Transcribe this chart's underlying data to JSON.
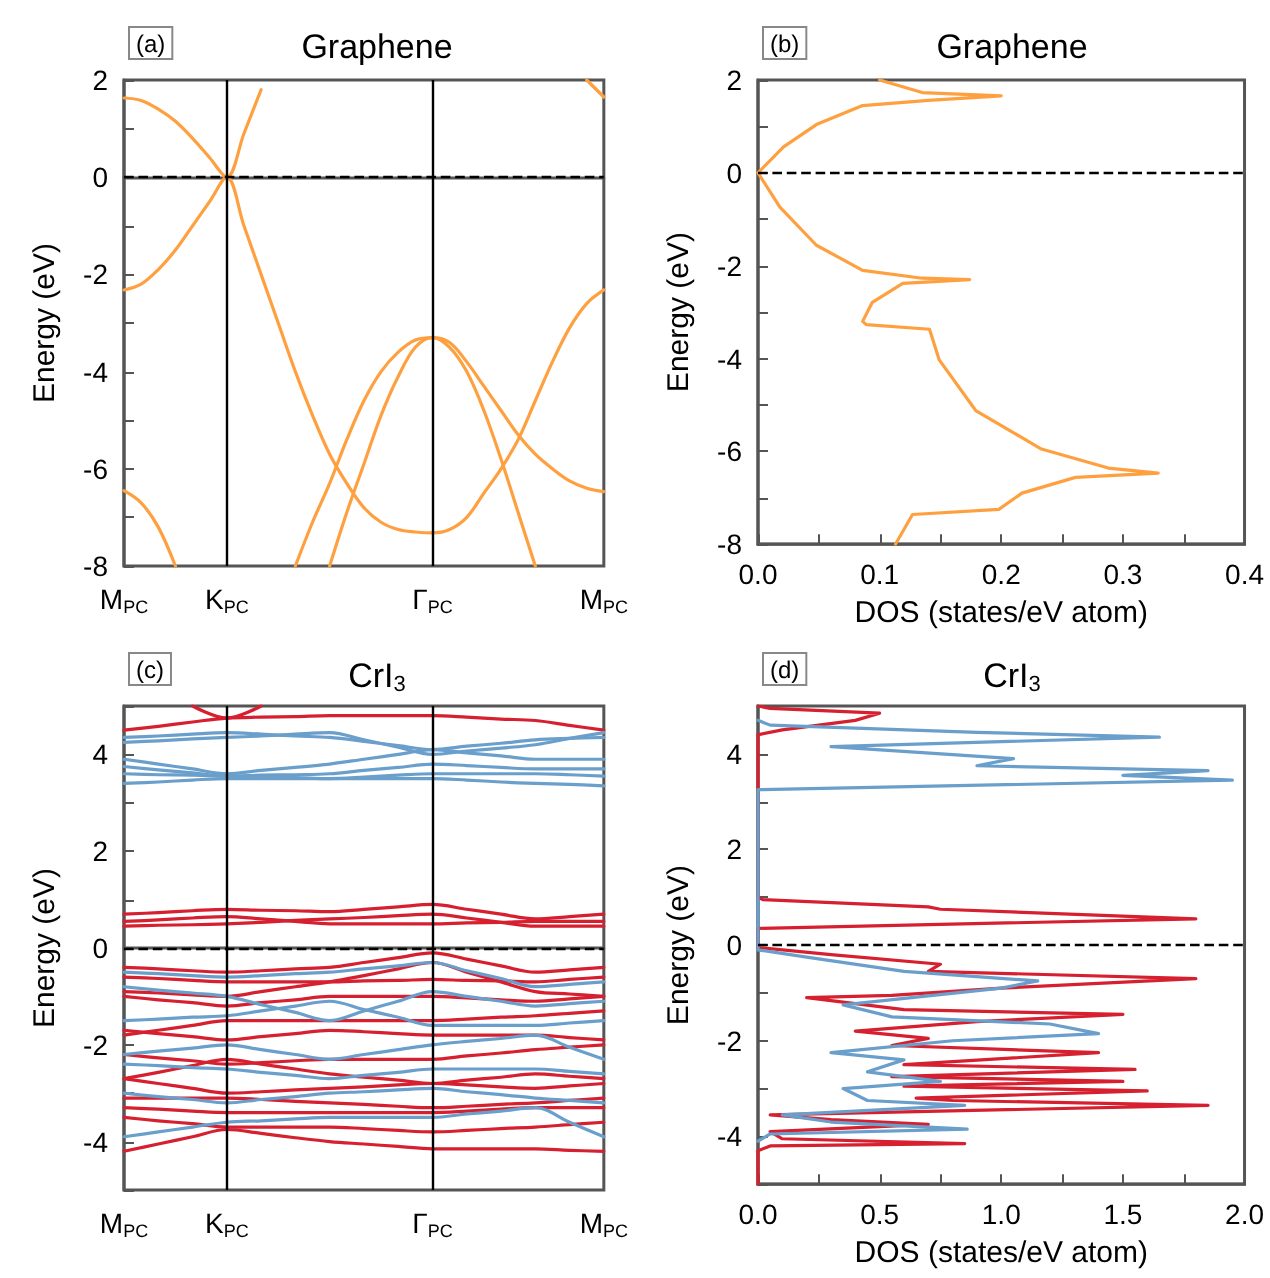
{
  "chart_data": [
    {
      "type": "line",
      "title": "Graphene",
      "ylabel": "Energy (eV)",
      "annotations": [
        "(a)"
      ],
      "color": "#ffa040",
      "marker": "none",
      "ylim": [
        -8,
        2
      ],
      "categories": [
        "M$_{PC}$",
        null,
        null,
        null,
        null,
        null,
        "K$_{PC}$",
        null,
        null,
        null,
        null,
        null,
        null,
        null,
        null,
        null,
        null,
        null,
        "Γ$_{PC}$",
        null,
        null,
        null,
        null,
        null,
        null,
        null,
        null,
        null,
        "M$_{PC}$"
      ],
      "yticks": [
        -8,
        {
          "value": -7,
          "label": null
        },
        -6,
        {
          "value": -5,
          "label": null
        },
        -4,
        {
          "value": -3,
          "label": null
        },
        -2,
        {
          "value": -1,
          "label": null
        },
        0,
        {
          "value": 1,
          "label": null
        },
        2
      ],
      "ref_lines": [
        {
          "axis": "x",
          "value": "K$_{PC}$",
          "color": "#000000",
          "line_style": "solid"
        },
        {
          "axis": "x",
          "value": "Γ$_{PC}$",
          "color": "#000000",
          "line_style": "solid"
        },
        {
          "axis": "y",
          "value": 0,
          "color": "#000000",
          "line_style": "dashed"
        }
      ],
      "series": [
        {
          "values": [
            1.63,
            1.58,
            1.4,
            1.15,
            0.8,
            0.4,
            0,
            0.9,
            1.8,
            null,
            null,
            null,
            null,
            null,
            null,
            null,
            null,
            null,
            null,
            null,
            null,
            null,
            null,
            null,
            null,
            null,
            null,
            null,
            null
          ]
        },
        {
          "values": [
            -2.32,
            -2.2,
            -1.9,
            -1.5,
            -1.0,
            -0.5,
            0,
            -1.0,
            -2.0,
            -3.0,
            -4.0,
            -4.9,
            -5.7,
            -6.3,
            -6.8,
            -7.1,
            -7.25,
            -7.3,
            -7.32,
            -7.25,
            -7.0,
            -6.5,
            -6.0,
            -5.4,
            -4.6,
            -3.8,
            -3.1,
            -2.6,
            -2.32
          ]
        },
        {
          "values": [
            null,
            null,
            null,
            null,
            null,
            null,
            null,
            null,
            null,
            null,
            -8,
            -7.1,
            -6.3,
            -5.4,
            -4.6,
            -4.0,
            -3.6,
            -3.35,
            -3.3,
            -3.5,
            -4.0,
            -4.8,
            -5.8,
            -6.9,
            -8,
            null,
            null,
            null,
            null
          ]
        },
        {
          "values": [
            null,
            null,
            null,
            null,
            null,
            null,
            null,
            null,
            null,
            null,
            null,
            null,
            -8,
            -6.9,
            -5.9,
            -4.9,
            -4.1,
            -3.5,
            -3.3,
            -3.4,
            -3.8,
            -4.3,
            -4.8,
            -5.3,
            -5.7,
            -6.0,
            -6.25,
            -6.4,
            -6.47
          ]
        },
        {
          "values": [
            -6.45,
            -6.7,
            -7.2,
            -8,
            null,
            null,
            null,
            null,
            null,
            null,
            null,
            null,
            null,
            null,
            null,
            null,
            null,
            null,
            null,
            null,
            null,
            null,
            null,
            null,
            null,
            null,
            null,
            null,
            null
          ]
        },
        {
          "values": [
            null,
            null,
            null,
            null,
            null,
            null,
            null,
            null,
            null,
            null,
            null,
            null,
            null,
            null,
            null,
            null,
            null,
            null,
            null,
            null,
            null,
            null,
            null,
            null,
            null,
            null,
            null,
            2,
            1.65
          ]
        }
      ]
    },
    {
      "type": "line",
      "title": "Graphene",
      "ylabel": "Energy (eV)",
      "xlabel": "DOS (states/eV atom)",
      "annotations": [
        "(b)"
      ],
      "color": "#ffa040",
      "marker": "none",
      "xlim": [
        0,
        0.4
      ],
      "ylim": [
        -8,
        2
      ],
      "xticks": [
        {
          "value": 0,
          "label": "0.0"
        },
        {
          "value": 0.05,
          "label": null
        },
        0.1,
        {
          "value": 0.15,
          "label": null
        },
        0.2,
        {
          "value": 0.25,
          "label": null
        },
        0.3,
        {
          "value": 0.35,
          "label": null
        },
        0.4
      ],
      "yticks": [
        -8,
        {
          "value": -7,
          "label": null
        },
        -6,
        {
          "value": -5,
          "label": null
        },
        -4,
        {
          "value": -3,
          "label": null
        },
        -2,
        {
          "value": -1,
          "label": null
        },
        0,
        {
          "value": 1,
          "label": null
        },
        2
      ],
      "ref_lines": [
        {
          "axis": "y",
          "value": 0,
          "color": "#000000",
          "line_style": "dashed"
        }
      ],
      "series": [
        {
          "x": [
            0.1,
            0.135,
            0.2,
            0.14,
            0.086,
            0.048,
            0.021,
            0,
            0.018,
            0.048,
            0.086,
            0.135,
            0.174,
            0.119,
            0.094,
            0.086,
            0.089,
            0.141,
            0.149,
            0.179,
            0.233,
            0.288,
            0.329,
            0.261,
            0.217,
            0.198,
            0.127,
            0.113
          ],
          "values": [
            2,
            1.73,
            1.66,
            1.56,
            1.45,
            1.04,
            0.56,
            0,
            -0.74,
            -1.56,
            -2.1,
            -2.27,
            -2.3,
            -2.38,
            -2.79,
            -3.2,
            -3.27,
            -3.37,
            -4.03,
            -5.12,
            -5.95,
            -6.36,
            -6.47,
            -6.56,
            -6.9,
            -7.25,
            -7.36,
            -8
          ]
        }
      ]
    },
    {
      "type": "line",
      "title": "CrI$_{3}$",
      "ylabel": "Energy (eV)",
      "annotations": [
        "(c)"
      ],
      "marker": "none",
      "ylim": [
        -5,
        5
      ],
      "categories": [
        "M$_{PC}$",
        null,
        null,
        "K$_{PC}$",
        null,
        null,
        null,
        null,
        null,
        "Γ$_{PC}$",
        null,
        null,
        null,
        null,
        "M$_{PC}$"
      ],
      "yticks": [
        {
          "value": -5,
          "label": null
        },
        -4,
        {
          "value": -3,
          "label": null
        },
        -2,
        {
          "value": -1,
          "label": null
        },
        0,
        {
          "value": 1,
          "label": null
        },
        2,
        {
          "value": 3,
          "label": null
        },
        4,
        {
          "value": 5,
          "label": null
        }
      ],
      "ref_lines": [
        {
          "axis": "x",
          "value": "K$_{PC}$",
          "color": "#000000",
          "line_style": "solid"
        },
        {
          "axis": "x",
          "value": "Γ$_{PC}$",
          "color": "#000000",
          "line_style": "solid"
        },
        {
          "axis": "y",
          "value": 0,
          "color": "#000000",
          "line_style": "dashed"
        }
      ],
      "series": [
        {
          "color": "#d62030",
          "values": [
            4.5,
            4.58,
            4.67,
            4.75,
            4.77,
            4.78,
            4.8,
            4.8,
            4.8,
            4.8,
            4.77,
            4.73,
            4.7,
            4.6,
            4.5
          ]
        },
        {
          "color": "#d62030",
          "values": [
            null,
            null,
            5,
            4.75,
            5,
            null,
            null,
            null,
            null,
            null,
            null,
            null,
            null,
            null,
            null
          ]
        },
        {
          "color": "#d62030",
          "values": [
            0.7,
            0.73,
            0.77,
            0.8,
            0.78,
            0.77,
            0.75,
            0.8,
            0.85,
            0.9,
            0.8,
            0.7,
            0.6,
            0.65,
            0.7
          ]
        },
        {
          "color": "#d62030",
          "values": [
            0.55,
            0.58,
            0.62,
            0.65,
            0.6,
            0.55,
            0.5,
            0.5,
            0.5,
            0.5,
            0.52,
            0.53,
            0.55,
            0.55,
            0.55
          ]
        },
        {
          "color": "#d62030",
          "values": [
            0.45,
            0.47,
            0.48,
            0.5,
            0.53,
            0.57,
            0.6,
            0.63,
            0.67,
            0.7,
            0.62,
            0.53,
            0.45,
            0.45,
            0.45
          ]
        },
        {
          "color": "#d62030",
          "values": [
            -0.4,
            -0.43,
            -0.47,
            -0.5,
            -0.47,
            -0.43,
            -0.4,
            -0.3,
            -0.2,
            -0.1,
            -0.23,
            -0.37,
            -0.5,
            -0.45,
            -0.4
          ]
        },
        {
          "color": "#d62030",
          "values": [
            -0.6,
            -0.63,
            -0.67,
            -0.7,
            -0.7,
            -0.7,
            -0.7,
            -0.68,
            -0.67,
            -0.65,
            -0.67,
            -0.68,
            -0.7,
            -0.65,
            -0.6
          ]
        },
        {
          "color": "#d62030",
          "values": [
            -0.9,
            -0.93,
            -0.97,
            -1.0,
            -0.9,
            -0.8,
            -0.7,
            -0.57,
            -0.43,
            -0.3,
            -0.5,
            -0.7,
            -0.9,
            -0.95,
            -1.0
          ]
        },
        {
          "color": "#d62030",
          "values": [
            -1.0,
            -1.07,
            -1.13,
            -1.2,
            -1.13,
            -1.07,
            -1.0,
            -1.0,
            -1.0,
            -1.0,
            -1.03,
            -1.07,
            -1.1,
            -1.05,
            -1.0
          ]
        },
        {
          "color": "#d62030",
          "values": [
            -1.8,
            -1.7,
            -1.6,
            -1.5,
            -1.5,
            -1.5,
            -1.5,
            -1.5,
            -1.5,
            -1.5,
            -1.47,
            -1.43,
            -1.4,
            -1.35,
            -1.3
          ]
        },
        {
          "color": "#d62030",
          "values": [
            -1.7,
            -1.77,
            -1.83,
            -1.9,
            -1.83,
            -1.77,
            -1.7,
            -1.73,
            -1.77,
            -1.8,
            -1.8,
            -1.8,
            -1.8,
            -1.85,
            -1.9
          ]
        },
        {
          "color": "#d62030",
          "values": [
            -2.2,
            -2.27,
            -2.33,
            -2.4,
            -2.37,
            -2.33,
            -2.3,
            -2.3,
            -2.3,
            -2.3,
            -2.23,
            -2.17,
            -2.1,
            -2.05,
            -2.0
          ]
        },
        {
          "color": "#d62030",
          "values": [
            -2.7,
            -2.57,
            -2.43,
            -2.3,
            -2.4,
            -2.5,
            -2.6,
            -2.67,
            -2.73,
            -2.8,
            -2.73,
            -2.67,
            -2.6,
            -2.65,
            -2.7
          ]
        },
        {
          "color": "#d62030",
          "values": [
            -2.7,
            -2.8,
            -2.9,
            -3.0,
            -2.97,
            -2.93,
            -2.9,
            -2.87,
            -2.83,
            -2.8,
            -2.83,
            -2.87,
            -2.9,
            -2.85,
            -2.8
          ]
        },
        {
          "color": "#d62030",
          "values": [
            -3.1,
            -3.1,
            -3.1,
            -3.1,
            -3.13,
            -3.17,
            -3.2,
            -3.23,
            -3.27,
            -3.3,
            -3.27,
            -3.23,
            -3.2,
            -3.15,
            -3.1
          ]
        },
        {
          "color": "#d62030",
          "values": [
            -3.3,
            -3.33,
            -3.37,
            -3.4,
            -3.4,
            -3.4,
            -3.4,
            -3.4,
            -3.4,
            -3.4,
            -3.37,
            -3.33,
            -3.3,
            -3.3,
            -3.3
          ]
        },
        {
          "color": "#d62030",
          "values": [
            -3.5,
            -3.57,
            -3.63,
            -3.7,
            -3.7,
            -3.7,
            -3.7,
            -3.73,
            -3.77,
            -3.8,
            -3.77,
            -3.73,
            -3.7,
            -3.65,
            -3.6
          ]
        },
        {
          "color": "#d62030",
          "values": [
            -4.2,
            -4.05,
            -3.9,
            -3.75,
            -3.83,
            -3.92,
            -4.0,
            -4.05,
            -4.1,
            -4.15,
            -4.15,
            -4.15,
            -4.15,
            -4.18,
            -4.2
          ]
        },
        {
          "color": "#6a9fcc",
          "values": [
            4.35,
            4.38,
            4.42,
            4.45,
            4.42,
            4.38,
            4.35,
            4.27,
            4.18,
            4.1,
            4.17,
            4.23,
            4.3,
            4.33,
            4.35
          ]
        },
        {
          "color": "#6a9fcc",
          "values": [
            4.25,
            4.28,
            4.32,
            4.35,
            4.38,
            4.42,
            4.45,
            4.3,
            4.15,
            4.0,
            4.07,
            4.13,
            4.2,
            4.33,
            4.45
          ]
        },
        {
          "color": "#6a9fcc",
          "values": [
            3.9,
            3.8,
            3.7,
            3.6,
            3.67,
            3.73,
            3.8,
            3.9,
            4.0,
            4.1,
            4.03,
            3.97,
            3.9,
            3.9,
            3.9
          ]
        },
        {
          "color": "#6a9fcc",
          "values": [
            3.75,
            3.68,
            3.62,
            3.55,
            3.57,
            3.58,
            3.6,
            3.67,
            3.73,
            3.8,
            3.77,
            3.73,
            3.7,
            3.7,
            3.7
          ]
        },
        {
          "color": "#6a9fcc",
          "values": [
            3.6,
            3.58,
            3.57,
            3.55,
            3.53,
            3.52,
            3.5,
            3.53,
            3.57,
            3.6,
            3.6,
            3.6,
            3.6,
            3.58,
            3.55
          ]
        },
        {
          "color": "#6a9fcc",
          "values": [
            3.4,
            3.43,
            3.47,
            3.5,
            3.5,
            3.5,
            3.5,
            3.5,
            3.5,
            3.5,
            3.47,
            3.43,
            3.4,
            3.38,
            3.35
          ]
        },
        {
          "color": "#6a9fcc",
          "values": [
            -0.5,
            -0.53,
            -0.57,
            -0.6,
            -0.57,
            -0.53,
            -0.5,
            -0.43,
            -0.37,
            -0.3,
            -0.47,
            -0.63,
            -0.8,
            -0.75,
            -0.7
          ]
        },
        {
          "color": "#6a9fcc",
          "values": [
            -0.8,
            -0.87,
            -0.93,
            -1.0,
            -1.17,
            -1.33,
            -1.5,
            -1.3,
            -1.1,
            -0.9,
            -1.0,
            -1.1,
            -1.2,
            -1.15,
            -1.1
          ]
        },
        {
          "color": "#6a9fcc",
          "values": [
            -1.5,
            -1.47,
            -1.43,
            -1.4,
            -1.3,
            -1.2,
            -1.1,
            -1.27,
            -1.43,
            -1.6,
            -1.6,
            -1.6,
            -1.6,
            -1.55,
            -1.5
          ]
        },
        {
          "color": "#6a9fcc",
          "values": [
            -2.2,
            -2.13,
            -2.07,
            -2.0,
            -2.1,
            -2.2,
            -2.3,
            -2.2,
            -2.1,
            -2.0,
            -1.93,
            -1.87,
            -1.8,
            -2.05,
            -2.3
          ]
        },
        {
          "color": "#6a9fcc",
          "values": [
            -2.4,
            -2.43,
            -2.47,
            -2.5,
            -2.57,
            -2.63,
            -2.7,
            -2.63,
            -2.57,
            -2.5,
            -2.5,
            -2.5,
            -2.5,
            -2.55,
            -2.6
          ]
        },
        {
          "color": "#6a9fcc",
          "values": [
            -3.0,
            -3.07,
            -3.13,
            -3.2,
            -3.13,
            -3.07,
            -3.0,
            -2.97,
            -2.93,
            -2.9,
            -2.97,
            -3.03,
            -3.1,
            -3.15,
            -3.2
          ]
        },
        {
          "color": "#6a9fcc",
          "values": [
            -3.9,
            -3.8,
            -3.7,
            -3.6,
            -3.57,
            -3.53,
            -3.5,
            -3.5,
            -3.5,
            -3.5,
            -3.43,
            -3.37,
            -3.3,
            -3.6,
            -3.9
          ]
        }
      ]
    },
    {
      "type": "line",
      "title": "CrI$_{3}$",
      "ylabel": "Energy (eV)",
      "xlabel": "DOS (states/eV atom)",
      "annotations": [
        "(d)"
      ],
      "marker": "none",
      "xlim": [
        0,
        2
      ],
      "ylim": [
        -5,
        5
      ],
      "xticks": [
        {
          "value": 0,
          "label": "0.0"
        },
        {
          "value": 0.25,
          "label": null
        },
        0.5,
        {
          "value": 0.75,
          "label": null
        },
        {
          "value": 1,
          "label": "1.0"
        },
        {
          "value": 1.25,
          "label": null
        },
        1.5,
        {
          "value": 1.75,
          "label": null
        },
        {
          "value": 2,
          "label": "2.0"
        }
      ],
      "yticks": [
        {
          "value": -5,
          "label": null
        },
        -4,
        {
          "value": -3,
          "label": null
        },
        -2,
        {
          "value": -1,
          "label": null
        },
        0,
        {
          "value": 1,
          "label": null
        },
        2,
        {
          "value": 3,
          "label": null
        },
        4,
        {
          "value": 5,
          "label": null
        }
      ],
      "ref_lines": [
        {
          "axis": "y",
          "value": 0,
          "color": "#000000",
          "line_style": "dashed"
        }
      ],
      "series": [
        {
          "color": "#d62030",
          "x": [
            0,
            0,
            0.05,
            0.85,
            0.1,
            0.05,
            0.7,
            0.3,
            0.05,
            1.85,
            0.8,
            0.65,
            1.6,
            0.6,
            1.5,
            0.55,
            1.55,
            0.6,
            1.4,
            0.55,
            0.7,
            0.4,
            0.9,
            1.5,
            0.6,
            0.2,
            0.55,
            1.0,
            1.8,
            0.7,
            0.75,
            0.3,
            0,
            0,
            1.8,
            0.75,
            0.7,
            0.02,
            0,
            0,
            0.1,
            0.4,
            0.5,
            0.05,
            0
          ],
          "values": [
            -5,
            -4.3,
            -4.2,
            -4.15,
            -4.05,
            -3.9,
            -3.75,
            -3.65,
            -3.55,
            -3.35,
            -3.25,
            -3.2,
            -3.05,
            -2.95,
            -2.85,
            -2.75,
            -2.6,
            -2.5,
            -2.25,
            -2.1,
            -1.95,
            -1.8,
            -1.6,
            -1.45,
            -1.35,
            -1.1,
            -1.05,
            -0.9,
            -0.7,
            -0.55,
            -0.4,
            -0.2,
            -0.05,
            0.35,
            0.55,
            0.75,
            0.8,
            0.95,
            1.0,
            4.4,
            4.5,
            4.7,
            4.85,
            4.95,
            5
          ]
        },
        {
          "color": "#6a9fcc",
          "x": [
            0,
            0.05,
            0.86,
            0.3,
            0.1,
            0.85,
            0.45,
            0.35,
            0.75,
            0.45,
            0.6,
            0.3,
            0.8,
            1.4,
            1.2,
            0.55,
            0.35,
            1.0,
            1.15,
            0.6,
            0.2,
            0,
            0,
            1.95,
            1.5,
            1.85,
            0.9,
            1.05,
            0.3,
            1.65,
            0.9,
            0.05,
            0
          ],
          "values": [
            -4.1,
            -3.95,
            -3.85,
            -3.7,
            -3.55,
            -3.35,
            -3.25,
            -3.0,
            -2.85,
            -2.65,
            -2.4,
            -2.25,
            -2.0,
            -1.85,
            -1.65,
            -1.5,
            -1.25,
            -0.9,
            -0.75,
            -0.55,
            -0.25,
            -0.1,
            3.25,
            3.45,
            3.55,
            3.65,
            3.75,
            3.9,
            4.15,
            4.35,
            4.45,
            4.6,
            4.7
          ]
        }
      ]
    }
  ]
}
